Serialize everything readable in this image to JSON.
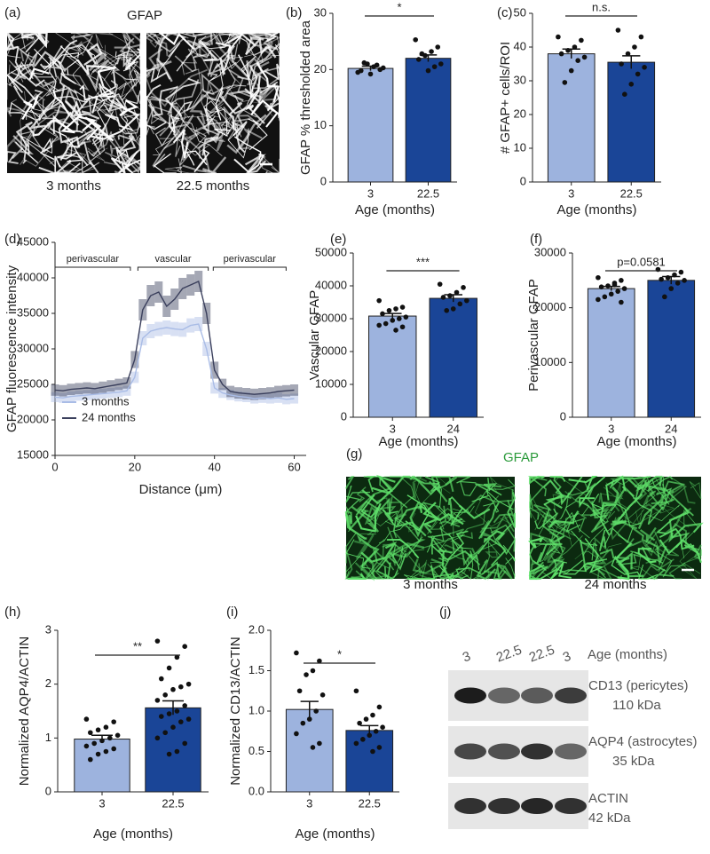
{
  "images": [
    {
      "panel": "(a)",
      "title": "GFAP",
      "captions": [
        "3 months",
        "22.5 months"
      ]
    },
    {
      "panel": "(g)",
      "title": "GFAP",
      "captions": [
        "3 months",
        "24 months"
      ]
    }
  ],
  "blot": {
    "panel": "(j)",
    "lanes": [
      "3",
      "22.5",
      "22.5",
      "3"
    ],
    "lanes_label": "Age (months)",
    "bands": [
      {
        "name": "CD13 (pericytes)",
        "size": "110 kDa"
      },
      {
        "name": "AQP4 (astrocytes)",
        "size": "35 kDa"
      },
      {
        "name": "ACTIN",
        "size": "42 kDa"
      }
    ]
  },
  "chart_data": [
    {
      "type": "bar",
      "panel": "(b)",
      "ylabel": "GFAP % thresholded area",
      "xlabel": "Age (months)",
      "categories": [
        "3",
        "22.5"
      ],
      "values": [
        20.2,
        22.0
      ],
      "errors": [
        0.4,
        0.6
      ],
      "colors": [
        "#9db3de",
        "#1a4597"
      ],
      "points": [
        [
          19.5,
          20,
          20.5,
          21,
          19.8,
          20.3,
          20.8,
          19.2,
          21.2
        ],
        [
          25.3,
          24,
          23.2,
          22.5,
          21.8,
          21,
          20.5,
          19.8,
          22.8
        ]
      ],
      "ylim": [
        0,
        30
      ],
      "yticks": [
        0,
        10,
        20,
        30
      ],
      "significance": "*"
    },
    {
      "type": "bar",
      "panel": "(c)",
      "ylabel": "# GFAP+ cells/ROI",
      "xlabel": "Age (months)",
      "categories": [
        "3",
        "22.5"
      ],
      "values": [
        38,
        35.5
      ],
      "errors": [
        1.4,
        1.9
      ],
      "colors": [
        "#9db3de",
        "#1a4597"
      ],
      "points": [
        [
          43,
          42,
          40,
          39,
          38,
          37,
          36,
          33,
          29.5
        ],
        [
          45,
          43,
          40,
          38,
          35,
          34,
          32,
          29,
          26
        ]
      ],
      "ylim": [
        0,
        50
      ],
      "yticks": [
        0,
        10,
        20,
        30,
        40,
        50
      ],
      "significance": "n.s."
    },
    {
      "type": "line",
      "panel": "(d)",
      "ylabel": "GFAP fluorescence intensity",
      "xlabel": "Distance (μm)",
      "regions": [
        "perivascular",
        "vascular",
        "perivascular"
      ],
      "x": [
        0,
        2,
        4,
        6,
        8,
        10,
        12,
        14,
        16,
        18,
        20,
        22,
        24,
        26,
        28,
        30,
        32,
        34,
        36,
        38,
        40,
        42,
        44,
        46,
        48,
        50,
        52,
        54,
        56,
        58,
        60
      ],
      "series": [
        {
          "name": "3 months",
          "color": "#a9bce6",
          "values": [
            23200,
            23100,
            23300,
            23400,
            23500,
            23600,
            23700,
            23800,
            23900,
            24100,
            26000,
            31500,
            32500,
            32800,
            33000,
            32800,
            32700,
            33300,
            33500,
            30000,
            24500,
            23800,
            23500,
            23300,
            23200,
            23000,
            23100,
            23000,
            23100,
            22900,
            23000
          ],
          "errors": [
            700,
            700,
            700,
            700,
            700,
            700,
            700,
            700,
            700,
            700,
            800,
            1000,
            1000,
            1000,
            1000,
            1000,
            1000,
            1000,
            1000,
            1000,
            800,
            700,
            700,
            700,
            700,
            700,
            700,
            700,
            700,
            700,
            700
          ]
        },
        {
          "name": "24 months",
          "color": "#3a3f5c",
          "values": [
            24200,
            24100,
            24300,
            24400,
            24500,
            24400,
            24600,
            24800,
            25000,
            25200,
            28500,
            35500,
            37500,
            38000,
            36000,
            37000,
            38500,
            39000,
            39500,
            35000,
            27000,
            25000,
            24000,
            23800,
            23700,
            23600,
            23700,
            23800,
            24000,
            24100,
            24200
          ],
          "errors": [
            800,
            800,
            800,
            800,
            800,
            800,
            800,
            800,
            800,
            800,
            1200,
            1500,
            1500,
            1500,
            1500,
            1500,
            1500,
            1500,
            1500,
            1500,
            1200,
            800,
            800,
            800,
            800,
            800,
            800,
            800,
            800,
            800,
            800
          ]
        }
      ],
      "xlim": [
        0,
        63
      ],
      "xticks": [
        0,
        20,
        40,
        60
      ],
      "ylim": [
        15000,
        45000
      ],
      "yticks": [
        15000,
        20000,
        25000,
        30000,
        35000,
        40000,
        45000
      ],
      "legend": "lower left"
    },
    {
      "type": "bar",
      "panel": "(e)",
      "ylabel": "Vascular GFAP",
      "xlabel": "Age (months)",
      "categories": [
        "3",
        "24"
      ],
      "values": [
        30800,
        36200
      ],
      "errors": [
        800,
        1100
      ],
      "colors": [
        "#9db3de",
        "#1a4597"
      ],
      "points": [
        [
          35500,
          33500,
          33000,
          32500,
          31500,
          30500,
          30000,
          29500,
          28500,
          28000,
          27500,
          26500
        ],
        [
          40500,
          39500,
          38000,
          37000,
          36500,
          35500,
          34500,
          33000,
          32500
        ]
      ],
      "ylim": [
        0,
        50000
      ],
      "yticks": [
        0,
        10000,
        20000,
        30000,
        40000,
        50000
      ],
      "significance": "***"
    },
    {
      "type": "bar",
      "panel": "(f)",
      "ylabel": "Perivascular GFAP",
      "xlabel": "Age (months)",
      "categories": [
        "3",
        "24"
      ],
      "values": [
        23500,
        25000
      ],
      "errors": [
        400,
        700
      ],
      "colors": [
        "#9db3de",
        "#1a4597"
      ],
      "points": [
        [
          25500,
          25000,
          24500,
          24000,
          23800,
          23500,
          23000,
          22500,
          22000,
          21500,
          21000,
          24200
        ],
        [
          27000,
          26500,
          26000,
          25500,
          25200,
          25000,
          24500,
          23500,
          22000
        ]
      ],
      "ylim": [
        0,
        30000
      ],
      "yticks": [
        0,
        10000,
        20000,
        30000
      ],
      "significance": "p=0.0581"
    },
    {
      "type": "bar",
      "panel": "(h)",
      "ylabel": "Normalized AQP4/ACTIN",
      "xlabel": "Age (months)",
      "categories": [
        "3",
        "22.5"
      ],
      "values": [
        0.98,
        1.56
      ],
      "errors": [
        0.07,
        0.13
      ],
      "colors": [
        "#9db3de",
        "#1a4597"
      ],
      "points": [
        [
          1.35,
          1.3,
          1.2,
          1.15,
          1.1,
          1.05,
          1.0,
          0.95,
          0.9,
          0.85,
          0.8,
          0.75,
          0.7,
          0.6
        ],
        [
          2.8,
          2.7,
          2.5,
          2.3,
          2.1,
          2.0,
          1.95,
          1.9,
          1.8,
          1.7,
          1.6,
          1.5,
          1.45,
          1.4,
          1.35,
          1.3,
          1.2,
          1.1,
          1.0,
          0.9,
          0.75,
          0.7
        ]
      ],
      "ylim": [
        0,
        3
      ],
      "yticks": [
        0,
        1,
        2,
        3
      ],
      "significance": "**"
    },
    {
      "type": "bar",
      "panel": "(i)",
      "ylabel": "Normalized CD13/ACTIN",
      "xlabel": "Age (months)",
      "categories": [
        "3",
        "22.5"
      ],
      "values": [
        1.02,
        0.76
      ],
      "errors": [
        0.1,
        0.06
      ],
      "colors": [
        "#9db3de",
        "#1a4597"
      ],
      "points": [
        [
          1.72,
          1.62,
          1.5,
          1.45,
          1.25,
          1.2,
          1.0,
          0.9,
          0.85,
          0.72,
          0.6,
          0.55
        ],
        [
          1.25,
          1.05,
          0.95,
          0.9,
          0.85,
          0.8,
          0.75,
          0.7,
          0.65,
          0.6,
          0.55,
          0.5
        ]
      ],
      "ylim": [
        0,
        2
      ],
      "yticks": [
        {
          "value": 0,
          "label": "0.0"
        },
        {
          "value": 0.5,
          "label": "0.5"
        },
        {
          "value": 1,
          "label": "1.0"
        },
        {
          "value": 1.5,
          "label": "1.5"
        },
        {
          "value": 2,
          "label": "2.0"
        }
      ],
      "significance": "*"
    }
  ]
}
